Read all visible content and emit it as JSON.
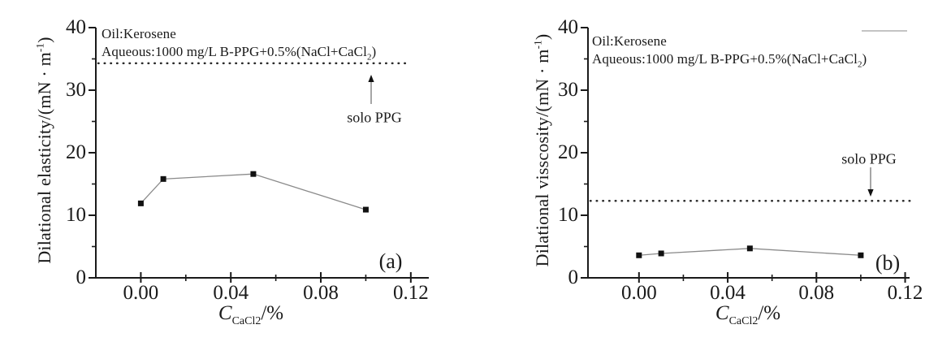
{
  "figure": {
    "background": "#ffffff",
    "description_colors": {
      "axis": "#1a1a1a",
      "text": "#1a1a1a",
      "series_line": "#8a8a8a",
      "marker": "#111111",
      "ref_dotted_line": "#2b2b2b",
      "arrow_shaft": "#777777",
      "legend_line_stub": "#b0b0b0"
    }
  },
  "chart_data": [
    {
      "type": "line",
      "panel_label": "(a)",
      "marker": "filled-square",
      "grid": false,
      "legend_position": "none",
      "x": [
        0.0,
        0.01,
        0.05,
        0.1
      ],
      "y": [
        11.9,
        15.8,
        16.6,
        10.9
      ],
      "xlim": [
        -0.02,
        0.128
      ],
      "ylim": [
        0,
        40
      ],
      "x_tick_values": [
        0.0,
        0.04,
        0.08,
        0.12
      ],
      "x_tick_labels": [
        "0.00",
        "0.04",
        "0.08",
        "0.12"
      ],
      "x_minor_ticks": [
        0.02,
        0.06,
        0.1
      ],
      "y_tick_values": [
        0,
        10,
        20,
        30,
        40
      ],
      "y_tick_labels": [
        "0",
        "10",
        "20",
        "30",
        "40"
      ],
      "y_minor_ticks": [
        5,
        15,
        25,
        35
      ],
      "xlabel": {
        "var": "C",
        "sub": "CaCl2",
        "rest": "/%"
      },
      "ylabel": {
        "main": "Dilational elasticity/(mN · m",
        "sup": "-1",
        "close": ")"
      },
      "annotation": {
        "line1": "Oil:Kerosene",
        "line2_pre": "Aqueous:1000 mg/L B-PPG+0.5%(NaCl+CaCl",
        "line2_sub": "2",
        "line2_post": ")"
      },
      "ref_line": {
        "value": 34.3,
        "label": "solo PPG",
        "arrow_direction": "up"
      },
      "legend_line_stub": false
    },
    {
      "type": "line",
      "panel_label": "(b)",
      "marker": "filled-square",
      "grid": false,
      "legend_position": "none",
      "x": [
        0.0,
        0.01,
        0.05,
        0.1
      ],
      "y": [
        3.6,
        3.9,
        4.7,
        3.6
      ],
      "xlim": [
        -0.023,
        0.122
      ],
      "ylim": [
        0,
        40
      ],
      "x_tick_values": [
        0.0,
        0.04,
        0.08,
        0.12
      ],
      "x_tick_labels": [
        "0.00",
        "0.04",
        "0.08",
        "0.12"
      ],
      "x_minor_ticks": [
        0.02,
        0.06,
        0.1
      ],
      "y_tick_values": [
        0,
        10,
        20,
        30,
        40
      ],
      "y_tick_labels": [
        "0",
        "10",
        "20",
        "30",
        "40"
      ],
      "y_minor_ticks": [
        5,
        15,
        25,
        35
      ],
      "xlabel": {
        "var": "C",
        "sub": "CaCl2",
        "rest": "/%"
      },
      "ylabel": {
        "main": "Dilational visscosity/(mN · m",
        "sup": "-1",
        "close": ")"
      },
      "annotation": {
        "line1": "Oil:Kerosene",
        "line2_pre": "Aqueous:1000 mg/L B-PPG+0.5%(NaCl+CaCl",
        "line2_sub": "2",
        "line2_post": ")"
      },
      "ref_line": {
        "value": 12.3,
        "label": "solo PPG",
        "arrow_direction": "down"
      },
      "legend_line_stub": true
    }
  ]
}
